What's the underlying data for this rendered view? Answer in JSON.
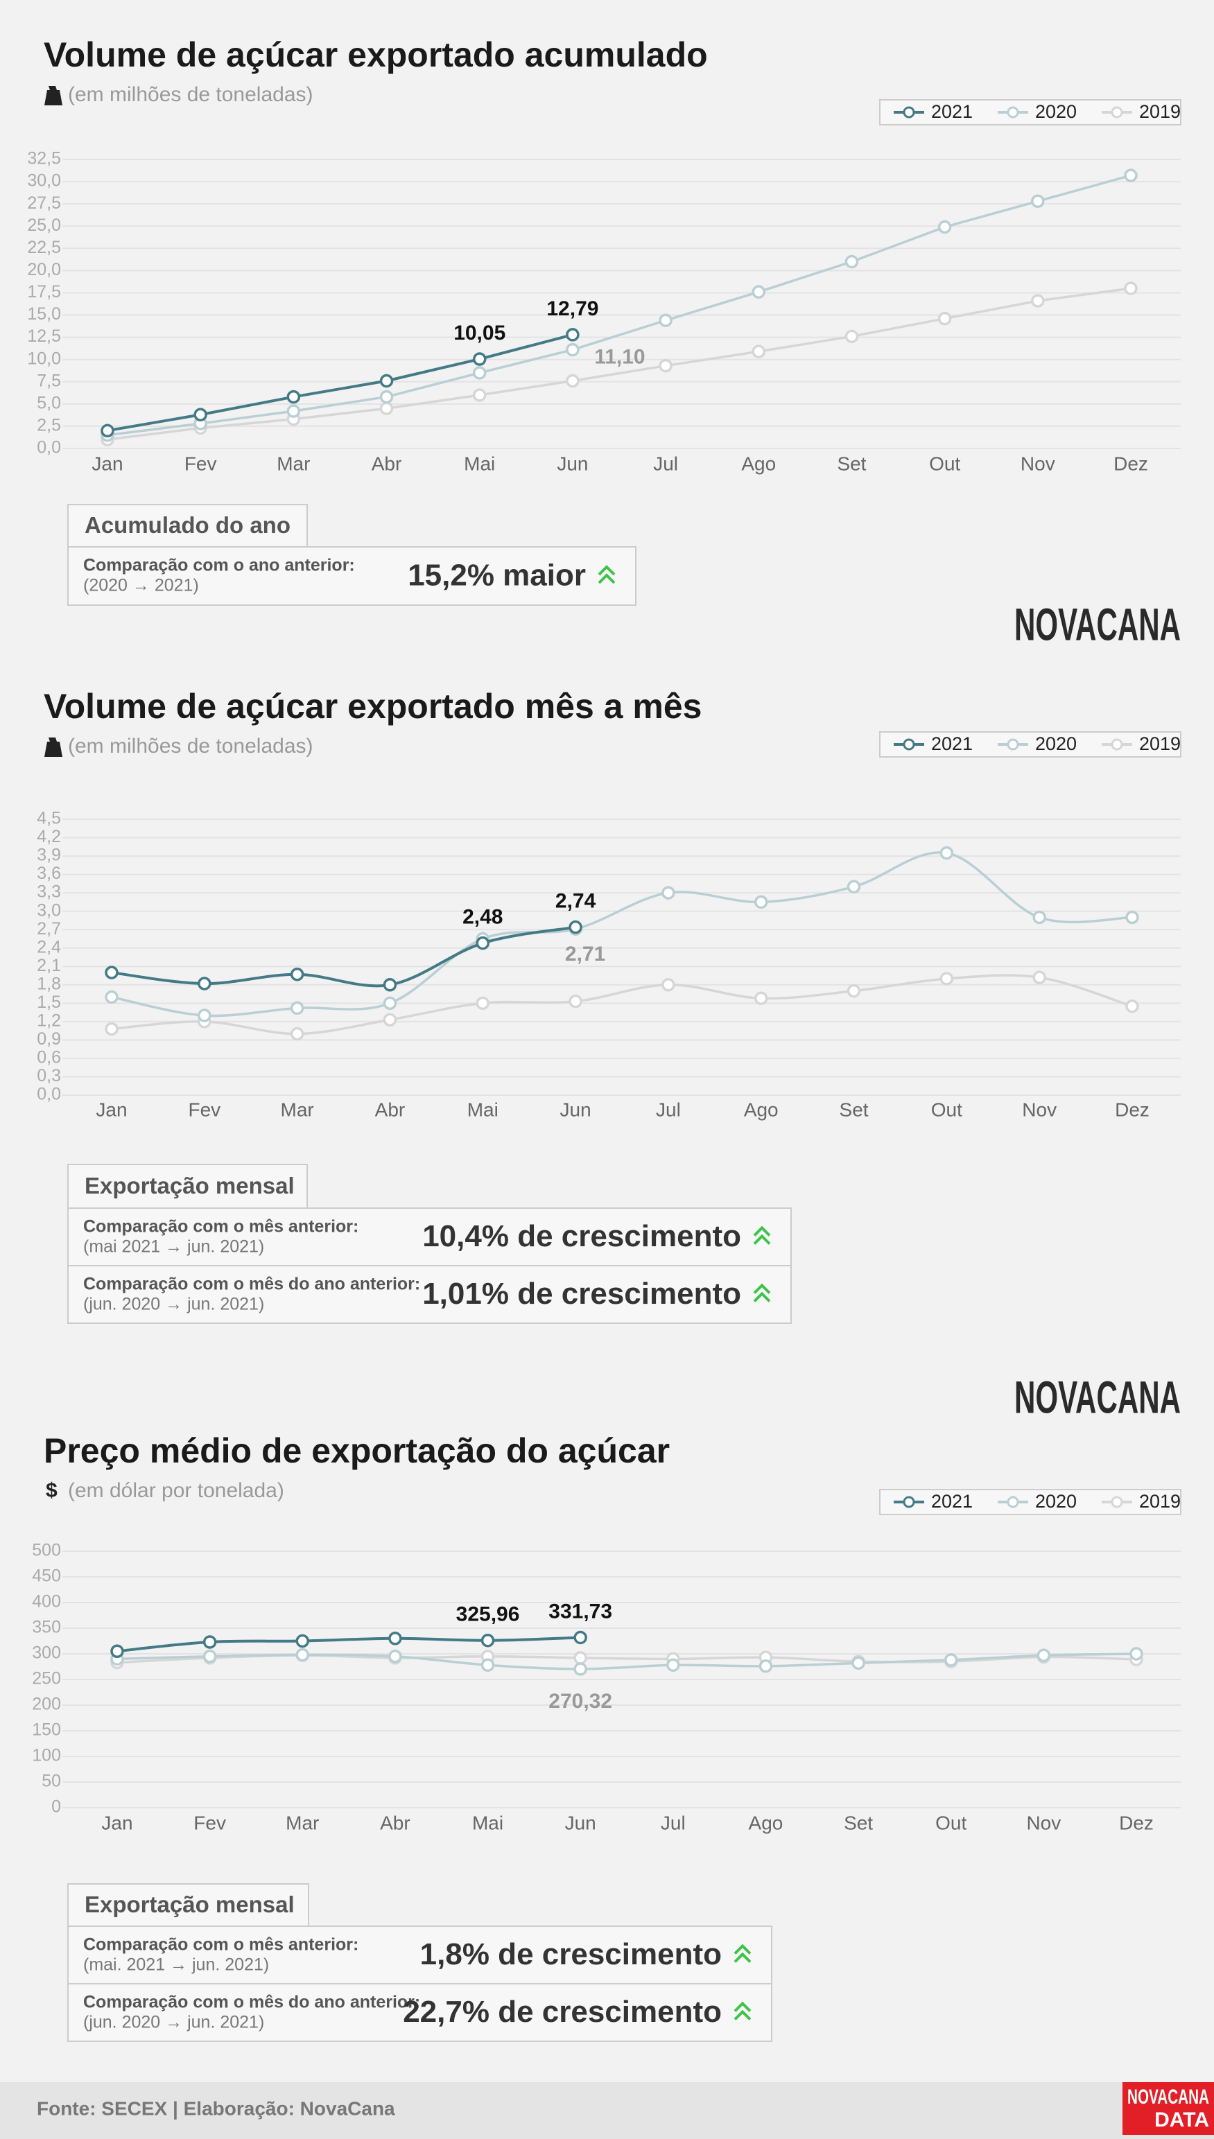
{
  "chart_data": [
    {
      "type": "line",
      "title": "Volume de açúcar exportado acumulado",
      "subtitle": "(em milhões de toneladas)",
      "categories": [
        "Jan",
        "Fev",
        "Mar",
        "Abr",
        "Mai",
        "Jun",
        "Jul",
        "Ago",
        "Set",
        "Out",
        "Nov",
        "Dez"
      ],
      "series": [
        {
          "name": "2021",
          "color": "#437a85",
          "values": [
            2.0,
            3.8,
            5.8,
            7.6,
            10.05,
            12.79,
            null,
            null,
            null,
            null,
            null,
            null
          ],
          "value_labels": [
            null,
            null,
            null,
            null,
            "10,05",
            "12,79",
            null,
            null,
            null,
            null,
            null,
            null
          ]
        },
        {
          "name": "2020",
          "color": "#b9cfd4",
          "values": [
            1.5,
            2.8,
            4.2,
            5.8,
            8.5,
            11.1,
            14.4,
            17.6,
            21.0,
            24.9,
            27.8,
            30.7
          ],
          "value_labels": [
            null,
            null,
            null,
            null,
            null,
            "11,10",
            null,
            null,
            null,
            null,
            null,
            null
          ]
        },
        {
          "name": "2019",
          "color": "#d6d6d6",
          "values": [
            1.0,
            2.3,
            3.3,
            4.5,
            6.0,
            7.6,
            9.3,
            10.9,
            12.6,
            14.6,
            16.6,
            18.0
          ]
        }
      ],
      "ylim": [
        0,
        32.5
      ],
      "yticks": [
        {
          "value": 0,
          "label": "0,0"
        },
        {
          "value": 2.5,
          "label": "2,5"
        },
        {
          "value": 5,
          "label": "5,0"
        },
        {
          "value": 7.5,
          "label": "7,5"
        },
        {
          "value": 10,
          "label": "10,0"
        },
        {
          "value": 12.5,
          "label": "12,5"
        },
        {
          "value": 15,
          "label": "15,0"
        },
        {
          "value": 17.5,
          "label": "17,5"
        },
        {
          "value": 20,
          "label": "20,0"
        },
        {
          "value": 22.5,
          "label": "22,5"
        },
        {
          "value": 25,
          "label": "25,0"
        },
        {
          "value": 27.5,
          "label": "27,5"
        },
        {
          "value": 30,
          "label": "30,0"
        },
        {
          "value": 32.5,
          "label": "32,5"
        }
      ],
      "grid": true,
      "legend": "top-right",
      "smooth": false
    },
    {
      "type": "line",
      "title": "Volume de açúcar exportado mês a mês",
      "subtitle": "(em milhões de toneladas)",
      "categories": [
        "Jan",
        "Fev",
        "Mar",
        "Abr",
        "Mai",
        "Jun",
        "Jul",
        "Ago",
        "Set",
        "Out",
        "Nov",
        "Dez"
      ],
      "series": [
        {
          "name": "2021",
          "color": "#437a85",
          "values": [
            2.0,
            1.82,
            1.97,
            1.8,
            2.48,
            2.74,
            null,
            null,
            null,
            null,
            null,
            null
          ],
          "value_labels": [
            null,
            null,
            null,
            null,
            "2,48",
            "2,74",
            null,
            null,
            null,
            null,
            null,
            null
          ]
        },
        {
          "name": "2020",
          "color": "#b9cfd4",
          "values": [
            1.6,
            1.3,
            1.42,
            1.5,
            2.55,
            2.71,
            3.3,
            3.15,
            3.4,
            3.95,
            2.9,
            2.9
          ],
          "value_labels": [
            null,
            null,
            null,
            null,
            null,
            "2,71",
            null,
            null,
            null,
            null,
            null,
            null
          ]
        },
        {
          "name": "2019",
          "color": "#d6d6d6",
          "values": [
            1.08,
            1.2,
            1.0,
            1.23,
            1.5,
            1.53,
            1.8,
            1.58,
            1.7,
            1.9,
            1.92,
            1.45
          ]
        }
      ],
      "ylim": [
        0,
        4.5
      ],
      "yticks": [
        {
          "value": 0,
          "label": "0,0"
        },
        {
          "value": 0.3,
          "label": "0,3"
        },
        {
          "value": 0.6,
          "label": "0,6"
        },
        {
          "value": 0.9,
          "label": "0,9"
        },
        {
          "value": 1.2,
          "label": "1,2"
        },
        {
          "value": 1.5,
          "label": "1,5"
        },
        {
          "value": 1.8,
          "label": "1,8"
        },
        {
          "value": 2.1,
          "label": "2,1"
        },
        {
          "value": 2.4,
          "label": "2,4"
        },
        {
          "value": 2.7,
          "label": "2,7"
        },
        {
          "value": 3.0,
          "label": "3,0"
        },
        {
          "value": 3.3,
          "label": "3,3"
        },
        {
          "value": 3.6,
          "label": "3,6"
        },
        {
          "value": 3.9,
          "label": "3,9"
        },
        {
          "value": 4.2,
          "label": "4,2"
        },
        {
          "value": 4.5,
          "label": "4,5"
        }
      ],
      "grid": true,
      "legend": "top-right",
      "smooth": true
    },
    {
      "type": "line",
      "title": "Preço médio de exportação do açúcar",
      "subtitle": "(em dólar por tonelada)",
      "subtitle_icon": "$",
      "categories": [
        "Jan",
        "Fev",
        "Mar",
        "Abr",
        "Mai",
        "Jun",
        "Jul",
        "Ago",
        "Set",
        "Out",
        "Nov",
        "Dez"
      ],
      "series": [
        {
          "name": "2021",
          "color": "#437a85",
          "values": [
            305,
            323,
            325,
            330,
            325.96,
            331.73,
            null,
            null,
            null,
            null,
            null,
            null
          ],
          "value_labels": [
            null,
            null,
            null,
            null,
            "325,96",
            "331,73",
            null,
            null,
            null,
            null,
            null,
            null
          ]
        },
        {
          "name": "2020",
          "color": "#b9cfd4",
          "values": [
            290,
            295,
            298,
            295,
            278,
            270.32,
            278,
            276,
            282,
            288,
            297,
            300
          ],
          "value_labels": [
            null,
            null,
            null,
            null,
            null,
            "270,32",
            null,
            null,
            null,
            null,
            null,
            null
          ]
        },
        {
          "name": "2019",
          "color": "#d6d6d6",
          "values": [
            283,
            292,
            297,
            292,
            295,
            292,
            290,
            293,
            285,
            285,
            294,
            289
          ]
        }
      ],
      "ylim": [
        0,
        500
      ],
      "yticks": [
        0,
        50,
        100,
        150,
        200,
        250,
        300,
        350,
        400,
        450,
        500
      ],
      "grid": true,
      "legend": "top-right",
      "smooth": true
    }
  ],
  "summaries": [
    {
      "title": "Acumulado do ano",
      "rows": [
        {
          "label": "Comparação com o ano anterior:",
          "detail": "(2020 → 2021)",
          "value": "15,2% maior"
        }
      ]
    },
    {
      "title": "Exportação mensal",
      "rows": [
        {
          "label": "Comparação com o mês anterior:",
          "detail": "(mai 2021 → jun. 2021)",
          "value": "10,4% de crescimento"
        },
        {
          "label": "Comparação com o mês do ano anterior:",
          "detail": "(jun. 2020 → jun. 2021)",
          "value": "1,01% de crescimento"
        }
      ]
    },
    {
      "title": "Exportação mensal",
      "rows": [
        {
          "label": "Comparação com o mês anterior:",
          "detail": "(mai. 2021 → jun. 2021)",
          "value": "1,8% de crescimento"
        },
        {
          "label": "Comparação com o mês do ano anterior:",
          "detail": "(jun. 2020 → jun. 2021)",
          "value": "22,7% de crescimento"
        }
      ]
    }
  ],
  "logo": "NOVACANA",
  "footer": "Fonte: SECEX | Elaboração: NovaCana",
  "footer_logo": [
    "NOVACANA",
    "DATA"
  ]
}
